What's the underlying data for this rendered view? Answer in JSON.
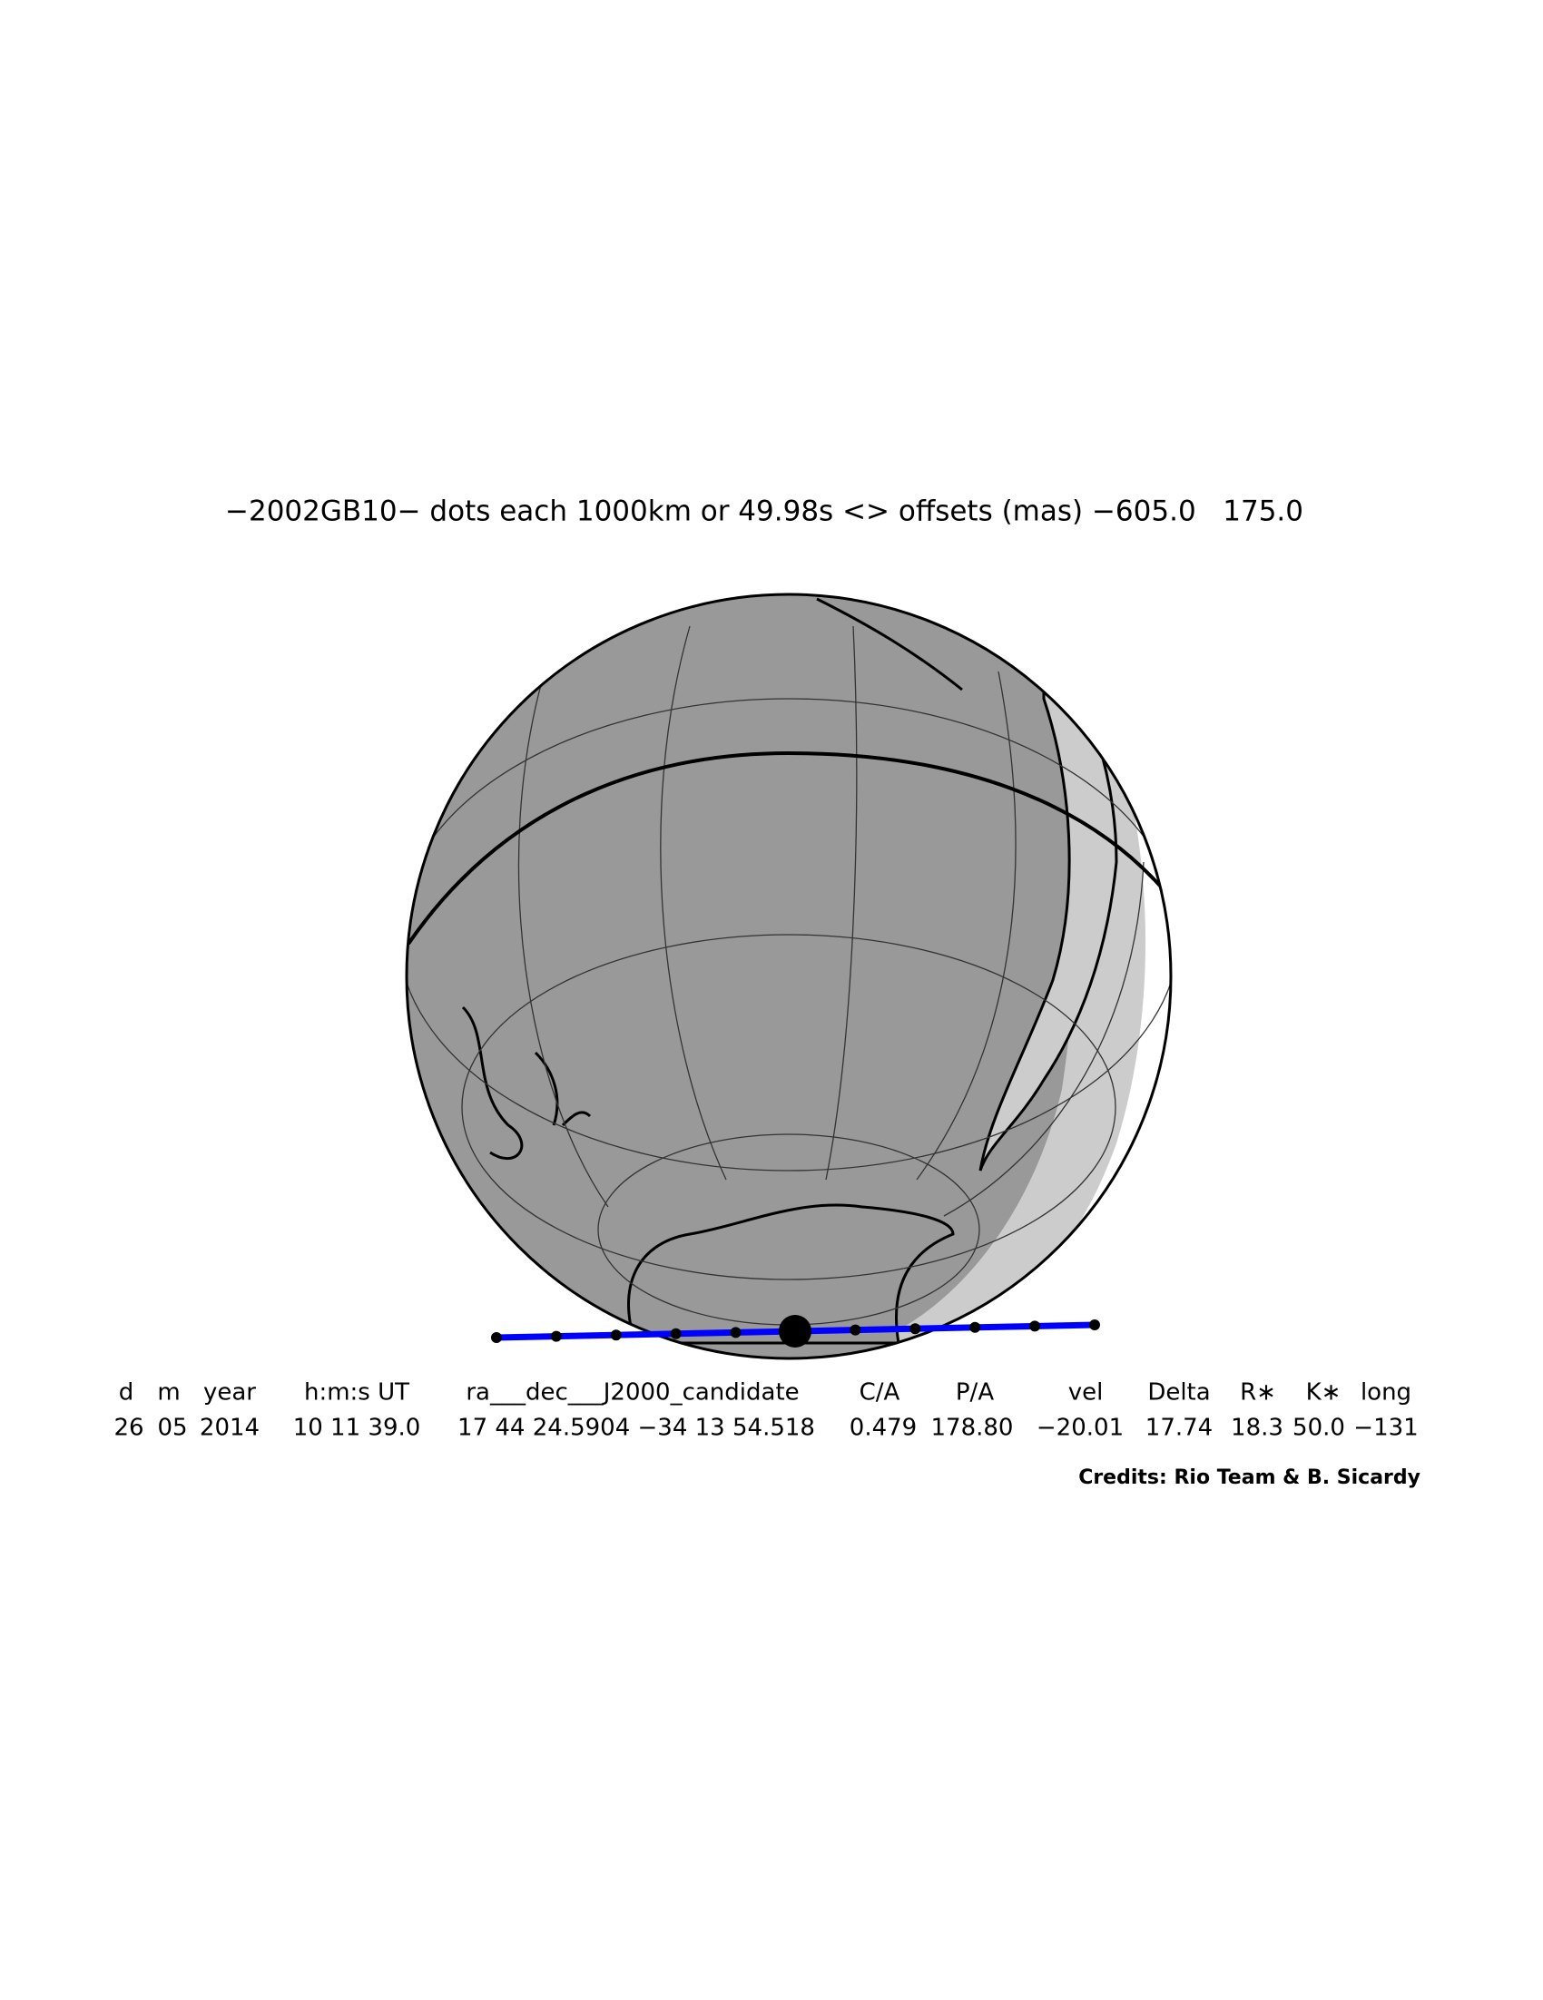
{
  "title": "−2002GB10− dots each 1000km or 49.98s <> offsets (mas) −605.0   175.0",
  "table": {
    "headers": [
      "d",
      "m",
      "year",
      "h:m:s UT",
      "ra___dec___J2000_candidate",
      "C/A",
      "P/A",
      "vel",
      "Delta",
      "R∗",
      "K∗",
      "long"
    ],
    "values": [
      "26",
      "05",
      "2014",
      "10 11 39.0",
      "17 44 24.5904 −34 13 54.518",
      "0.479",
      "178.80",
      "−20.01",
      "17.74",
      "18.3",
      "50.0",
      "−131"
    ]
  },
  "credits": "Credits: Rio Team & B. Sicardy"
}
